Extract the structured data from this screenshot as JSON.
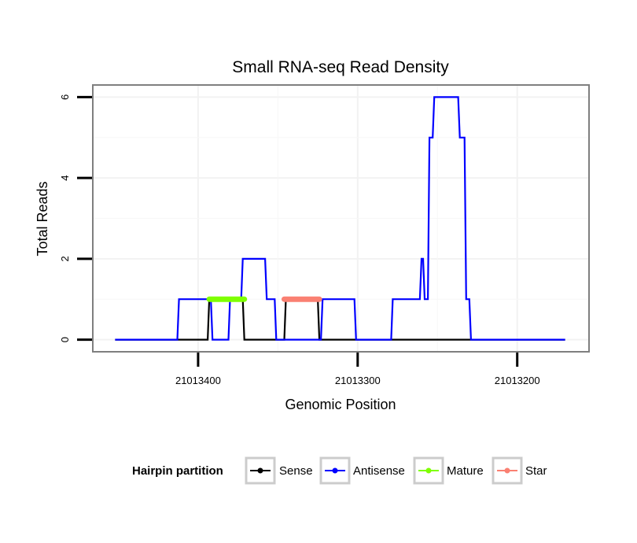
{
  "chart_data": {
    "type": "line",
    "title": "Small RNA-seq Read Density",
    "xlabel": "Genomic Position",
    "ylabel": "Total Reads",
    "x_reversed": true,
    "xlim": [
      21013466,
      21013155
    ],
    "ylim": [
      -0.3,
      6.3
    ],
    "x_ticks": [
      21013400,
      21013300,
      21013200
    ],
    "x_tick_labels": [
      "21013400",
      "21013300",
      "21013200"
    ],
    "y_ticks": [
      0,
      2,
      4,
      6
    ],
    "y_tick_labels": [
      "0",
      "2",
      "4",
      "6"
    ],
    "legend": {
      "title": "Hairpin partition",
      "position": "bottom",
      "entries": [
        {
          "label": "Sense",
          "color": "#000000"
        },
        {
          "label": "Antisense",
          "color": "#0000ff"
        },
        {
          "label": "Mature",
          "color": "#7fff00"
        },
        {
          "label": "Star",
          "color": "#fa8072"
        }
      ]
    },
    "series": [
      {
        "name": "Sense",
        "color": "#000000",
        "x": [
          21013452,
          21013394,
          21013393,
          21013383,
          21013372,
          21013371,
          21013346,
          21013345,
          21013325,
          21013324,
          21013170
        ],
        "y": [
          0,
          0,
          1,
          1,
          1,
          0,
          0,
          1,
          1,
          0,
          0
        ]
      },
      {
        "name": "Antisense",
        "color": "#0000ff",
        "x": [
          21013452,
          21013413,
          21013412,
          21013392,
          21013391,
          21013381,
          21013380,
          21013373,
          21013372,
          21013358,
          21013357,
          21013352,
          21013351,
          21013346,
          21013345,
          21013323,
          21013322,
          21013302,
          21013301,
          21013279,
          21013278,
          21013261,
          21013260,
          21013259,
          21013258,
          21013256,
          21013255,
          21013253,
          21013252,
          21013237,
          21013236,
          21013233,
          21013232,
          21013230,
          21013229,
          21013170
        ],
        "y": [
          0,
          0,
          1,
          1,
          0,
          0,
          1,
          1,
          2,
          2,
          1,
          1,
          0,
          0,
          0,
          0,
          1,
          1,
          0,
          0,
          1,
          1,
          2,
          2,
          1,
          1,
          5,
          5,
          6,
          6,
          5,
          5,
          1,
          1,
          0,
          0
        ]
      },
      {
        "name": "Mature",
        "color": "#7fff00",
        "x": [
          21013393,
          21013371
        ],
        "y": [
          1,
          1
        ]
      },
      {
        "name": "Star",
        "color": "#fa8072",
        "x": [
          21013346,
          21013324
        ],
        "y": [
          1,
          1
        ]
      }
    ]
  }
}
